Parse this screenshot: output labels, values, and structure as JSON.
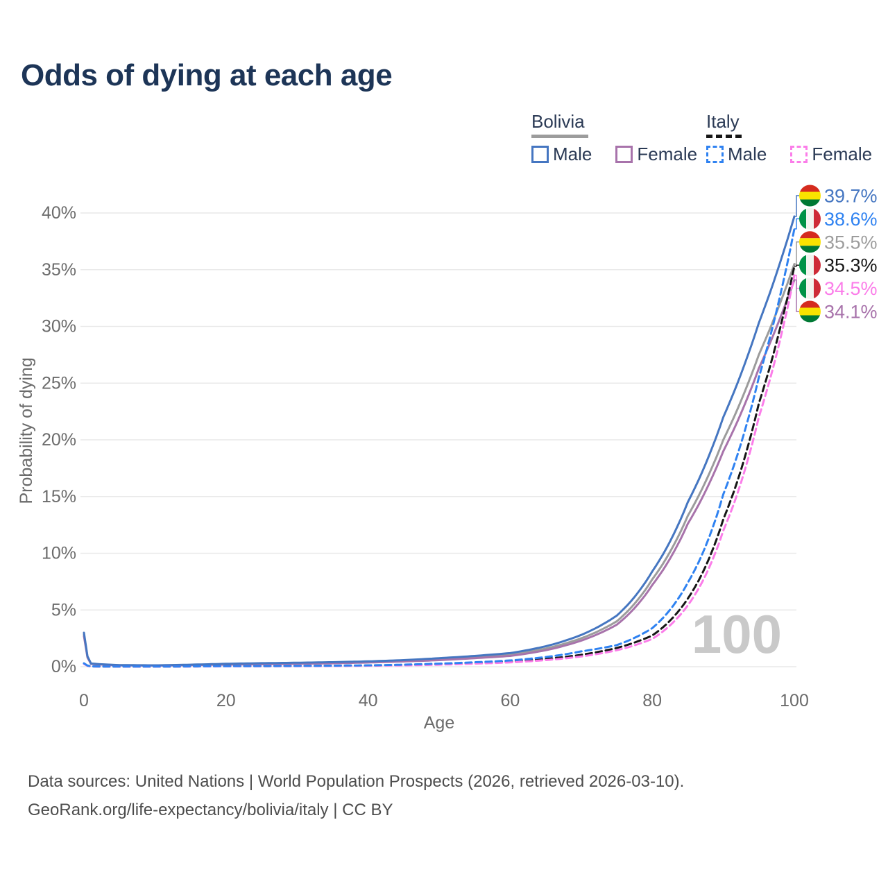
{
  "title": "Odds of dying at each age",
  "legend": {
    "groups": [
      {
        "country": "Bolivia",
        "line_style": "solid",
        "line_color": "#9c9c9c",
        "items": [
          {
            "label": "Male",
            "color": "#4576c1",
            "style": "solid"
          },
          {
            "label": "Female",
            "color": "#a873ab",
            "style": "solid"
          }
        ]
      },
      {
        "country": "Italy",
        "line_style": "dashed",
        "line_color": "#161616",
        "items": [
          {
            "label": "Male",
            "color": "#2f82f1",
            "style": "dashed"
          },
          {
            "label": "Female",
            "color": "#fb7de9",
            "style": "dashed"
          }
        ]
      }
    ]
  },
  "chart_data": {
    "type": "line",
    "title": "Odds of dying at each age",
    "xlabel": "Age",
    "ylabel": "Probability of dying",
    "xlim": [
      0,
      100
    ],
    "ylim": [
      0,
      42
    ],
    "x_ticks": [
      0,
      20,
      40,
      60,
      80,
      100
    ],
    "y_tick_values": [
      0,
      5,
      10,
      15,
      20,
      25,
      30,
      35,
      40
    ],
    "y_tick_suffix": "%",
    "grid": "horizontal-only",
    "hover_age_watermark": "100",
    "ages": [
      0,
      1,
      5,
      10,
      15,
      20,
      25,
      30,
      35,
      40,
      45,
      50,
      55,
      60,
      65,
      70,
      75,
      80,
      85,
      90,
      95,
      100
    ],
    "series": [
      {
        "name": "Bolivia",
        "country": "Bolivia",
        "sex": "both",
        "color": "#9c9c9c",
        "dashed": false,
        "flag": "bolivia",
        "end_label": "35.5%",
        "values": [
          2.85,
          0.26,
          0.13,
          0.11,
          0.16,
          0.22,
          0.26,
          0.3,
          0.35,
          0.42,
          0.52,
          0.66,
          0.84,
          1.05,
          1.6,
          2.5,
          4.0,
          7.7,
          13.3,
          20.0,
          27.5,
          35.5
        ]
      },
      {
        "name": "Bolivia Female",
        "country": "Bolivia",
        "sex": "female",
        "color": "#a873ab",
        "dashed": false,
        "flag": "bolivia",
        "end_label": "34.1%",
        "values": [
          2.7,
          0.24,
          0.12,
          0.1,
          0.14,
          0.18,
          0.21,
          0.25,
          0.3,
          0.37,
          0.46,
          0.58,
          0.75,
          0.95,
          1.45,
          2.3,
          3.7,
          7.2,
          12.6,
          19.0,
          26.3,
          34.1
        ]
      },
      {
        "name": "Bolivia Male",
        "country": "Bolivia",
        "sex": "male",
        "color": "#4576c1",
        "dashed": false,
        "flag": "bolivia",
        "end_label": "39.7%",
        "values": [
          3.0,
          0.28,
          0.14,
          0.12,
          0.18,
          0.26,
          0.31,
          0.35,
          0.4,
          0.47,
          0.58,
          0.75,
          0.95,
          1.2,
          1.8,
          2.8,
          4.5,
          8.4,
          14.5,
          22.0,
          30.3,
          39.7
        ]
      },
      {
        "name": "Italy",
        "country": "Italy",
        "sex": "both",
        "color": "#161616",
        "dashed": true,
        "flag": "italy",
        "end_label": "35.3%",
        "values": [
          0.27,
          0.027,
          0.009,
          0.009,
          0.025,
          0.04,
          0.05,
          0.06,
          0.08,
          0.1,
          0.15,
          0.22,
          0.32,
          0.45,
          0.68,
          1.05,
          1.65,
          2.75,
          6.0,
          13.0,
          23.2,
          35.3
        ]
      },
      {
        "name": "Italy Female",
        "country": "Italy",
        "sex": "female",
        "color": "#fb7de9",
        "dashed": true,
        "flag": "italy",
        "end_label": "34.5%",
        "values": [
          0.25,
          0.024,
          0.008,
          0.008,
          0.02,
          0.03,
          0.04,
          0.05,
          0.06,
          0.09,
          0.12,
          0.18,
          0.27,
          0.38,
          0.58,
          0.9,
          1.45,
          2.45,
          5.4,
          12.0,
          22.0,
          34.5
        ]
      },
      {
        "name": "Italy Male",
        "country": "Italy",
        "sex": "male",
        "color": "#2f82f1",
        "dashed": true,
        "flag": "italy",
        "end_label": "38.6%",
        "values": [
          0.3,
          0.03,
          0.01,
          0.01,
          0.03,
          0.05,
          0.06,
          0.07,
          0.09,
          0.12,
          0.18,
          0.27,
          0.39,
          0.55,
          0.85,
          1.35,
          1.9,
          3.4,
          7.4,
          15.2,
          25.5,
          38.6
        ]
      }
    ],
    "flag_colors": {
      "bolivia": [
        "#d52b1e",
        "#f9e300",
        "#007934"
      ],
      "italy": [
        "#009246",
        "#f3f4ef",
        "#ce2b37"
      ]
    },
    "legend_position": "top-right"
  },
  "footer": {
    "line1": "Data sources: United Nations | World Population Prospects (2026, retrieved 2026-03-10).",
    "line2": "GeoRank.org/life-expectancy/bolivia/italy | CC BY"
  }
}
